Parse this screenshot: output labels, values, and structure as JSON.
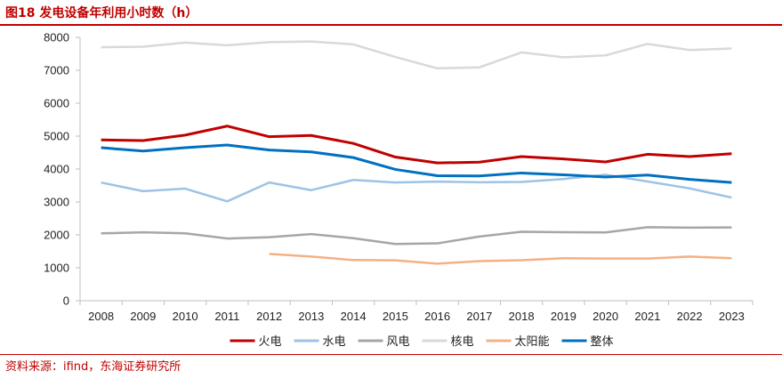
{
  "header": {
    "title": "图18  发电设备年利用小时数（h）"
  },
  "footer": {
    "source": "资料来源：ifind，东海证券研究所"
  },
  "chart_data": {
    "type": "line",
    "title": "发电设备年利用小时数（h）",
    "xlabel": "",
    "ylabel": "",
    "ylim": [
      0,
      8000
    ],
    "yticks": [
      0,
      1000,
      2000,
      3000,
      4000,
      5000,
      6000,
      7000,
      8000
    ],
    "x": [
      "2008",
      "2009",
      "2010",
      "2011",
      "2012",
      "2013",
      "2014",
      "2015",
      "2016",
      "2017",
      "2018",
      "2019",
      "2020",
      "2021",
      "2022",
      "2023"
    ],
    "legend_position": "bottom",
    "series": [
      {
        "name": "火电",
        "color": "#c00000",
        "width": 3,
        "values": [
          4885,
          4865,
          5031,
          5305,
          4982,
          5021,
          4778,
          4364,
          4186,
          4209,
          4378,
          4307,
          4216,
          4448,
          4379,
          4466
        ]
      },
      {
        "name": "水电",
        "color": "#9dc3e6",
        "width": 2.5,
        "values": [
          3589,
          3328,
          3404,
          3019,
          3591,
          3359,
          3669,
          3590,
          3619,
          3597,
          3607,
          3697,
          3827,
          3622,
          3412,
          3133
        ]
      },
      {
        "name": "风电",
        "color": "#a6a6a6",
        "width": 2.5,
        "values": [
          2046,
          2077,
          2047,
          1890,
          1929,
          2025,
          1900,
          1724,
          1742,
          1948,
          2095,
          2082,
          2073,
          2232,
          2221,
          2225
        ]
      },
      {
        "name": "核电",
        "color": "#d9d9d9",
        "width": 2.5,
        "values": [
          7700,
          7716,
          7840,
          7759,
          7855,
          7874,
          7787,
          7403,
          7060,
          7089,
          7543,
          7394,
          7453,
          7802,
          7616,
          7661
        ]
      },
      {
        "name": "太阳能",
        "color": "#f4b183",
        "width": 2.5,
        "values": [
          null,
          null,
          null,
          null,
          1423,
          1342,
          1235,
          1225,
          1125,
          1204,
          1230,
          1291,
          1281,
          1281,
          1340,
          1292
        ]
      },
      {
        "name": "整体",
        "color": "#0070c0",
        "width": 3,
        "values": [
          4648,
          4546,
          4650,
          4730,
          4579,
          4521,
          4348,
          3988,
          3797,
          3790,
          3880,
          3825,
          3758,
          3817,
          3687,
          3592
        ]
      }
    ]
  }
}
